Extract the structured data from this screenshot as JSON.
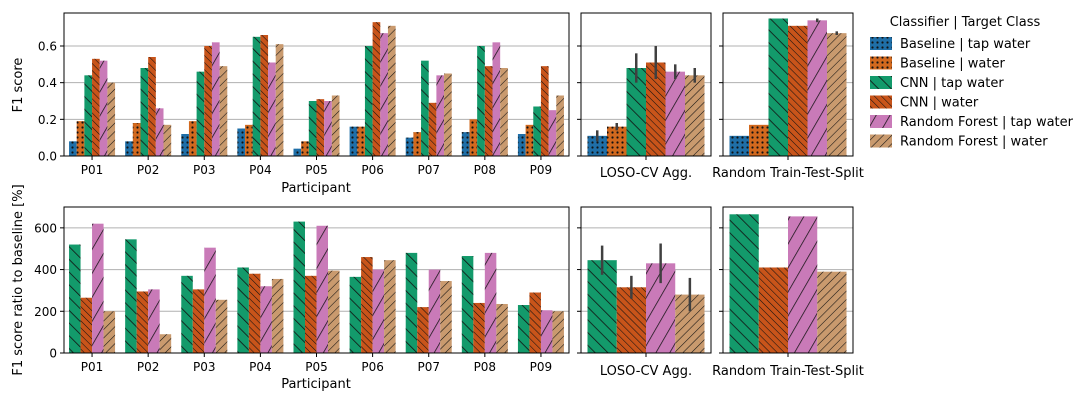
{
  "colors": {
    "blue": "#1f6fa8",
    "orange": "#d2691e",
    "green": "#139a6b",
    "rust": "#c8541a",
    "pink": "#c97ab8",
    "tan": "#c99a6e",
    "grid": "#b0b0b0",
    "error": "#404040"
  },
  "chart_data": [
    {
      "name": "f1-participant",
      "type": "bar",
      "ylabel": "F1 score",
      "xlabel": "Participant",
      "ylim": [
        0,
        0.78
      ],
      "yticks": [
        0.0,
        0.2,
        0.4,
        0.6
      ],
      "ytick_labels": [
        "0.0",
        "0.2",
        "0.4",
        "0.6"
      ],
      "categories": [
        "P01",
        "P02",
        "P03",
        "P04",
        "P05",
        "P06",
        "P07",
        "P08",
        "P09"
      ],
      "series": [
        {
          "name": "Baseline | tap water",
          "values": [
            0.08,
            0.08,
            0.12,
            0.15,
            0.04,
            0.16,
            0.1,
            0.13,
            0.12
          ]
        },
        {
          "name": "Baseline | water",
          "values": [
            0.19,
            0.18,
            0.19,
            0.17,
            0.08,
            0.16,
            0.13,
            0.2,
            0.17
          ]
        },
        {
          "name": "CNN | tap water",
          "values": [
            0.44,
            0.48,
            0.46,
            0.65,
            0.3,
            0.6,
            0.52,
            0.6,
            0.27
          ]
        },
        {
          "name": "CNN | water",
          "values": [
            0.53,
            0.54,
            0.6,
            0.66,
            0.31,
            0.73,
            0.29,
            0.49,
            0.49
          ]
        },
        {
          "name": "Random Forest | tap water",
          "values": [
            0.52,
            0.26,
            0.62,
            0.51,
            0.3,
            0.67,
            0.44,
            0.62,
            0.25
          ]
        },
        {
          "name": "Random Forest | water",
          "values": [
            0.4,
            0.17,
            0.49,
            0.61,
            0.33,
            0.71,
            0.45,
            0.48,
            0.33
          ]
        }
      ]
    },
    {
      "name": "f1-loso",
      "type": "bar",
      "xlabel": "LOSO-CV Agg.",
      "ylim": [
        0,
        0.78
      ],
      "values": [
        0.11,
        0.16,
        0.48,
        0.51,
        0.46,
        0.44
      ],
      "errors": [
        0.03,
        0.02,
        0.08,
        0.09,
        0.04,
        0.04
      ]
    },
    {
      "name": "f1-random",
      "type": "bar",
      "xlabel": "Random Train-Test-Split",
      "ylim": [
        0,
        0.78
      ],
      "values": [
        0.11,
        0.17,
        0.75,
        0.71,
        0.74,
        0.67
      ],
      "errors": [
        0,
        0,
        0,
        0,
        0.01,
        0.01
      ]
    },
    {
      "name": "ratio-participant",
      "type": "bar",
      "ylabel": "F1 score ratio to baseline [%]",
      "xlabel": "Participant",
      "ylim": [
        0,
        700
      ],
      "yticks": [
        0,
        200,
        400,
        600
      ],
      "ytick_labels": [
        "0",
        "200",
        "400",
        "600"
      ],
      "categories": [
        "P01",
        "P02",
        "P03",
        "P04",
        "P05",
        "P06",
        "P07",
        "P08",
        "P09"
      ],
      "series": [
        {
          "name": "CNN | tap water",
          "values": [
            520,
            545,
            370,
            410,
            630,
            365,
            480,
            465,
            230
          ]
        },
        {
          "name": "CNN | water",
          "values": [
            265,
            295,
            305,
            380,
            370,
            460,
            220,
            240,
            290
          ]
        },
        {
          "name": "Random Forest | tap water",
          "values": [
            620,
            305,
            505,
            320,
            610,
            400,
            400,
            480,
            205
          ]
        },
        {
          "name": "Random Forest | water",
          "values": [
            200,
            90,
            255,
            355,
            395,
            445,
            345,
            235,
            200
          ]
        }
      ]
    },
    {
      "name": "ratio-loso",
      "type": "bar",
      "xlabel": "LOSO-CV Agg.",
      "ylim": [
        0,
        700
      ],
      "values": [
        445,
        315,
        430,
        280
      ],
      "errors": [
        70,
        55,
        95,
        80
      ]
    },
    {
      "name": "ratio-random",
      "type": "bar",
      "xlabel": "Random Train-Test-Split",
      "ylim": [
        0,
        700
      ],
      "values": [
        665,
        410,
        655,
        390
      ],
      "errors": [
        0,
        0,
        0,
        0
      ]
    }
  ],
  "legend": {
    "title": "Classifier | Target Class",
    "entries": [
      "Baseline | tap water",
      "Baseline | water",
      "CNN | tap water",
      "CNN | water",
      "Random Forest | tap water",
      "Random Forest | water"
    ]
  }
}
